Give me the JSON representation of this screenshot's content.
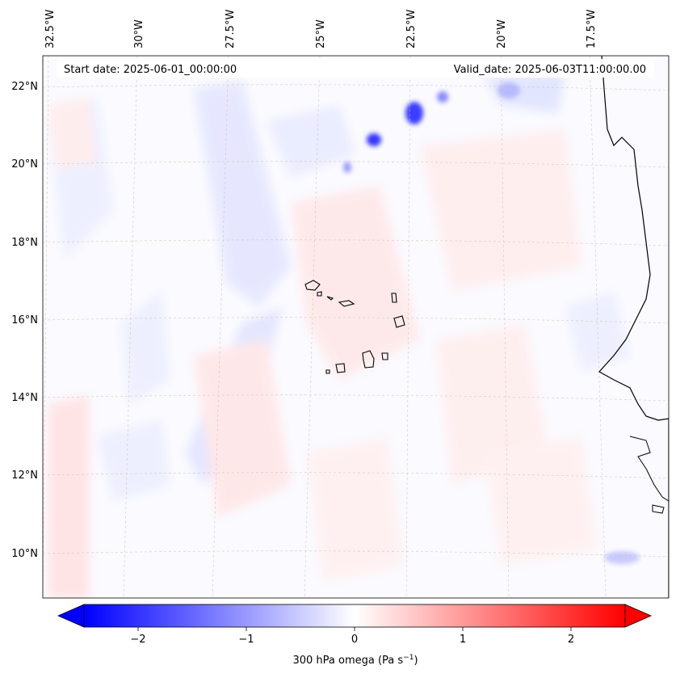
{
  "map": {
    "start_date": "Start date: 2025-06-01_00:00:00",
    "valid_date": "Valid_date: 2025-06-03T11:00:00.00",
    "lon_labels": [
      "32.5°W",
      "30°W",
      "27.5°W",
      "25°W",
      "22.5°W",
      "20°W",
      "17.5°W"
    ],
    "lat_labels": [
      "22°N",
      "20°N",
      "18°N",
      "16°N",
      "14°N",
      "12°N",
      "10°N"
    ],
    "colorbar": {
      "label": "300 hPa omega (Pa s",
      "label_sup": "−1",
      "label_close": ")",
      "ticks": [
        "−2",
        "−1",
        "0",
        "1",
        "2"
      ],
      "tick_values": [
        -2,
        -1,
        0,
        1,
        2
      ],
      "range": [
        -2.5,
        2.5
      ],
      "colormap": "bwr",
      "low_color": "#0000ff",
      "high_color": "#ff0000"
    },
    "grid_color": "#c9b49a"
  }
}
